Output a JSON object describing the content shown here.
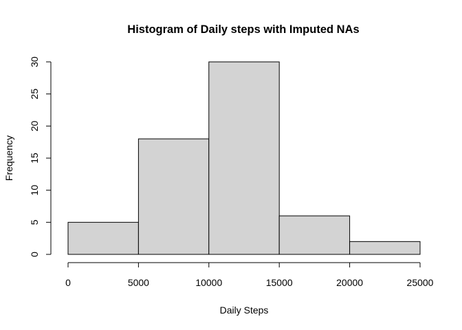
{
  "chart_data": {
    "type": "bar",
    "title": "Histogram of Daily steps with Imputed NAs",
    "xlabel": "Daily Steps",
    "ylabel": "Frequency",
    "bins": [
      {
        "start": 0,
        "end": 5000,
        "count": 5
      },
      {
        "start": 5000,
        "end": 10000,
        "count": 18
      },
      {
        "start": 10000,
        "end": 15000,
        "count": 30
      },
      {
        "start": 15000,
        "end": 20000,
        "count": 6
      },
      {
        "start": 20000,
        "end": 25000,
        "count": 2
      }
    ],
    "xlim": [
      0,
      25000
    ],
    "ylim": [
      0,
      30
    ],
    "x_ticks": [
      0,
      5000,
      10000,
      15000,
      20000,
      25000
    ],
    "y_ticks": [
      0,
      5,
      10,
      15,
      20,
      25,
      30
    ],
    "bar_fill": "#d3d3d3",
    "bar_stroke": "#000000",
    "grid": false,
    "legend": "none"
  }
}
